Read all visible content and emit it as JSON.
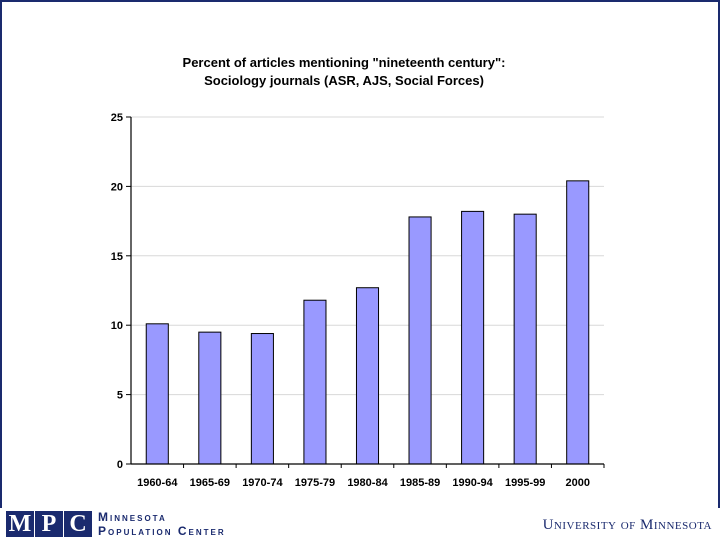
{
  "chart_data": {
    "type": "bar",
    "title": "Percent of articles mentioning \"nineteenth century\":",
    "subtitle": "Sociology journals (ASR, AJS, Social Forces)",
    "xlabel": "",
    "ylabel": "",
    "categories": [
      "1960-64",
      "1965-69",
      "1970-74",
      "1975-79",
      "1980-84",
      "1985-89",
      "1990-94",
      "1995-99",
      "2000"
    ],
    "values": [
      10.1,
      9.5,
      9.4,
      11.8,
      12.7,
      17.8,
      18.2,
      18.0,
      20.4
    ],
    "ylim": [
      0,
      25
    ],
    "yticks": [
      "0",
      "5",
      "10",
      "15",
      "20",
      "25"
    ],
    "grid": true,
    "legend": "none",
    "bar_color": "#9999ff"
  },
  "footer": {
    "logo_letters": [
      "M",
      "P",
      "C"
    ],
    "org_line1": "Minnesota",
    "org_line2": "Population Center",
    "university": "University of Minnesota"
  },
  "colors": {
    "brand": "#1a2a6e",
    "bar": "#9999ff"
  }
}
